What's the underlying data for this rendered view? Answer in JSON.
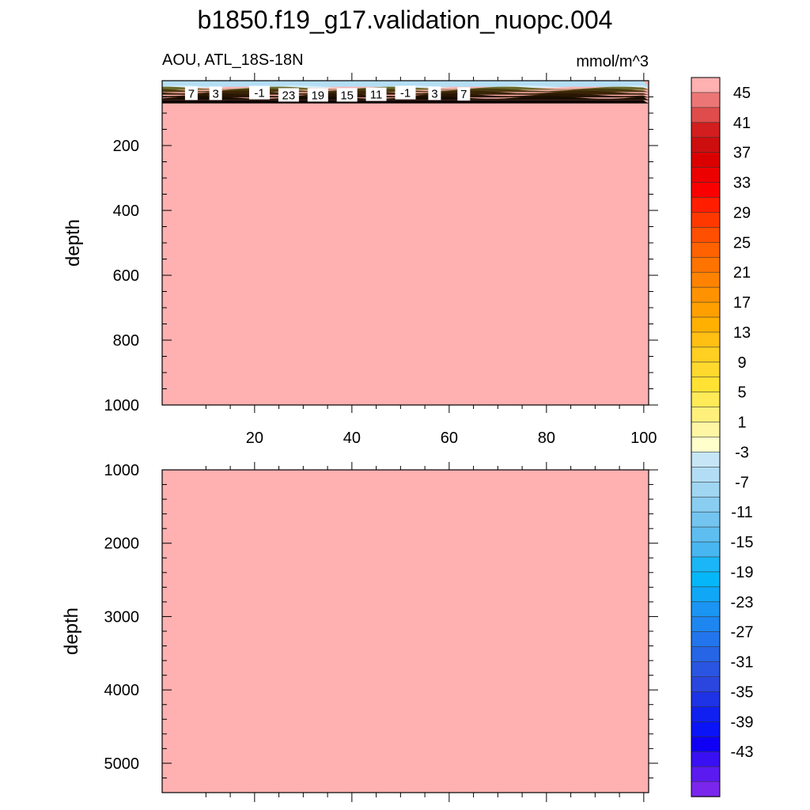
{
  "title": "b1850.f19_g17.validation_nuopc.004",
  "chart_data": [
    {
      "type": "heatmap",
      "panel": "upper",
      "left_label": "AOU, ATL_18S-18N",
      "right_label": "mmol/m^3",
      "ylabel": "depth",
      "xlabel": "",
      "xlim": [
        1,
        101
      ],
      "ylim": [
        1000,
        0
      ],
      "y_ticks": [
        "200",
        "400",
        "600",
        "800",
        "1000"
      ],
      "x_ticks": [
        "20",
        "40",
        "60",
        "80",
        "100"
      ],
      "fill_below_surface_value": 47,
      "surface_layer_depth": [
        0,
        70
      ],
      "contour_labels": [
        {
          "x": 7,
          "depth": 40,
          "text": "7"
        },
        {
          "x": 12,
          "depth": 40,
          "text": "3"
        },
        {
          "x": 21,
          "depth": 38,
          "text": "-1"
        },
        {
          "x": 27,
          "depth": 45,
          "text": "23"
        },
        {
          "x": 33,
          "depth": 45,
          "text": "19"
        },
        {
          "x": 39,
          "depth": 45,
          "text": "15"
        },
        {
          "x": 45,
          "depth": 43,
          "text": "11"
        },
        {
          "x": 51,
          "depth": 38,
          "text": "-1"
        },
        {
          "x": 57,
          "depth": 40,
          "text": "3"
        },
        {
          "x": 63,
          "depth": 42,
          "text": "7"
        }
      ]
    },
    {
      "type": "heatmap",
      "panel": "lower",
      "ylabel": "depth",
      "xlim": [
        1,
        101
      ],
      "ylim": [
        5400,
        1000
      ],
      "y_ticks": [
        "1000",
        "2000",
        "3000",
        "4000",
        "5000"
      ],
      "fill_value": 47
    }
  ],
  "colorbar": {
    "labels": [
      "45",
      "41",
      "37",
      "33",
      "29",
      "25",
      "21",
      "17",
      "13",
      "9",
      "5",
      "1",
      "-3",
      "-7",
      "-11",
      "-15",
      "-19",
      "-23",
      "-27",
      "-31",
      "-35",
      "-39",
      "-43"
    ],
    "colors": [
      "#ffb0b0",
      "#ec7676",
      "#df4c4c",
      "#d21e1e",
      "#cd0e0e",
      "#db0000",
      "#ec0000",
      "#fa0000",
      "#ff1e00",
      "#ff3800",
      "#ff4f00",
      "#ff6200",
      "#ff7300",
      "#ff8300",
      "#ff9200",
      "#ffa000",
      "#ffb000",
      "#ffbf13",
      "#ffcf22",
      "#ffd92d",
      "#ffe233",
      "#ffea57",
      "#fff07c",
      "#fff6a4",
      "#ffffcc",
      "#c6e6f6",
      "#b3ddf4",
      "#a0d6f2",
      "#89cdf0",
      "#73c5f0",
      "#5ebef0",
      "#48b7f1",
      "#1ab6f6",
      "#05b7f9",
      "#10a7f7",
      "#1a95f3",
      "#1e86f0",
      "#2275ec",
      "#2565e6",
      "#2a54e2",
      "#2a46df",
      "#1e32e6",
      "#1020f0",
      "#0a14f6",
      "#0f00f5",
      "#3810f2",
      "#5b1af0",
      "#7a26ec"
    ]
  }
}
